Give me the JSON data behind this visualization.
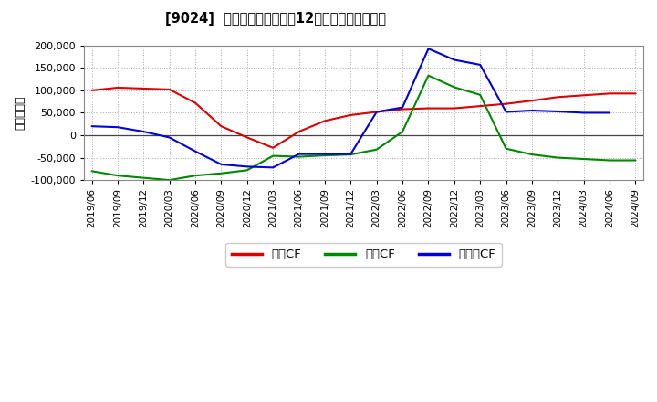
{
  "title": "[9024]  キャッシュフローの12か月移動合計の推移",
  "ylabel": "（百万円）",
  "ylim": [
    -100000,
    200000
  ],
  "yticks": [
    -100000,
    -50000,
    0,
    50000,
    100000,
    150000,
    200000
  ],
  "background_color": "#ffffff",
  "plot_bg_color": "#ffffff",
  "grid_color": "#aaaaaa",
  "x_labels": [
    "2019/06",
    "2019/09",
    "2019/12",
    "2020/03",
    "2020/06",
    "2020/09",
    "2020/12",
    "2021/03",
    "2021/06",
    "2021/09",
    "2021/12",
    "2022/03",
    "2022/06",
    "2022/09",
    "2022/12",
    "2023/03",
    "2023/06",
    "2023/09",
    "2023/12",
    "2024/03",
    "2024/06",
    "2024/09"
  ],
  "series": {
    "営業CF": {
      "color": "#dd0000",
      "values": [
        100000,
        106000,
        104000,
        102000,
        72000,
        20000,
        -5000,
        -28000,
        8000,
        32000,
        45000,
        52000,
        58000,
        60000,
        60000,
        65000,
        70000,
        77000,
        85000,
        89000,
        93000,
        93000
      ]
    },
    "投資CF": {
      "color": "#008800",
      "values": [
        -80000,
        -90000,
        -95000,
        -100000,
        -90000,
        -85000,
        -78000,
        -46000,
        -48000,
        -45000,
        -43000,
        -32000,
        8000,
        133000,
        107000,
        90000,
        -30000,
        -43000,
        -50000,
        -53000,
        -56000,
        -56000
      ]
    },
    "フリーCF": {
      "color": "#0000dd",
      "values": [
        20000,
        18000,
        8000,
        -5000,
        -36000,
        -65000,
        -70000,
        -72000,
        -42000,
        -42000,
        -42000,
        52000,
        62000,
        193000,
        168000,
        157000,
        52000,
        55000,
        53000,
        50000,
        50000,
        null
      ]
    }
  },
  "legend_entries": [
    "営業CF",
    "投資CF",
    "フリーCF"
  ],
  "legend_colors": [
    "#dd0000",
    "#008800",
    "#0000dd"
  ],
  "legend_labels": [
    "営業CF",
    "投資CF",
    "フリーCF"
  ]
}
